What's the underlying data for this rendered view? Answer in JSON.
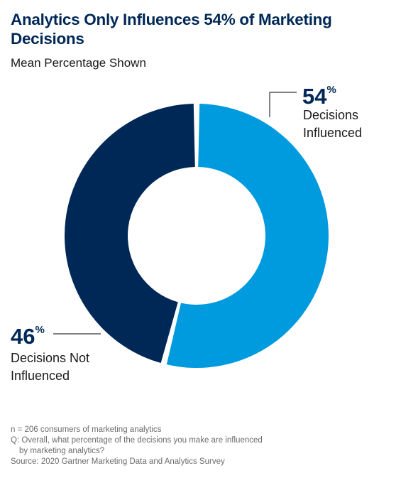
{
  "header": {
    "title": "Analytics Only Influences 54% of Marketing Decisions",
    "subtitle": "Mean Percentage Shown"
  },
  "chart_data": {
    "type": "pie",
    "title": "Analytics Only Influences 54% of Marketing Decisions",
    "subtitle": "Mean Percentage Shown",
    "unit": "%",
    "slices": [
      {
        "label": "Decisions Influenced",
        "label_lines": [
          "Decisions",
          "Influenced"
        ],
        "value": 54,
        "display": "54",
        "color": "#009ADE"
      },
      {
        "label": "Decisions Not Influenced",
        "label_lines": [
          "Decisions Not",
          "Influenced"
        ],
        "value": 46,
        "display": "46",
        "color": "#002856"
      }
    ]
  },
  "footnotes": {
    "n": "n = 206 consumers of marketing analytics",
    "q_line1": "Q: Overall, what percentage of the decisions you make are influenced",
    "q_line2": "by marketing analytics?",
    "source": "Source: 2020 Gartner Marketing Data and Analytics Survey"
  },
  "colors": {
    "influenced": "#009ADE",
    "not_influenced": "#002856",
    "title": "#002856"
  }
}
